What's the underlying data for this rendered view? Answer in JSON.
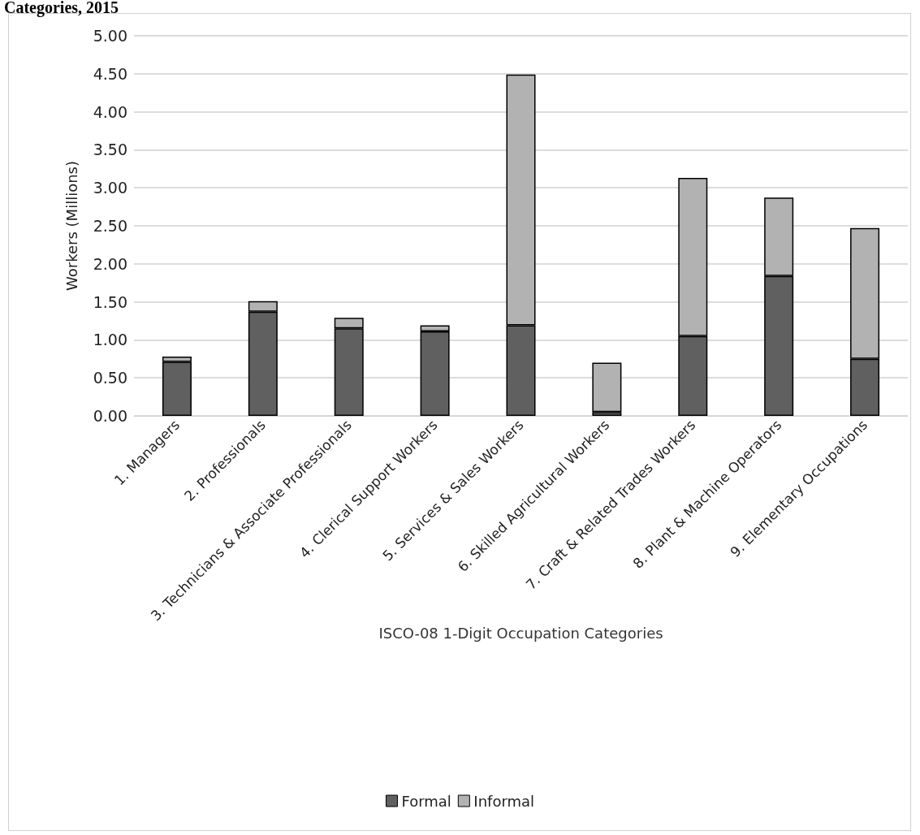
{
  "chart_data": {
    "type": "bar",
    "title": "Categories, 2015",
    "xlabel": "ISCO-08 1-Digit Occupation Categories",
    "ylabel": "Workers (Millions)",
    "categories": [
      "1. Managers",
      "2. Professionals",
      "3. Technicians & Associate Professionals",
      "4. Clerical Support Workers",
      "5. Services & Sales Workers",
      "6. Skilled Agricultural Workers",
      "7. Craft & Related Trades Workers",
      "8. Plant & Machine Operators",
      "9. Elementary Occupations"
    ],
    "series": [
      {
        "name": "Formal",
        "color": "#606060",
        "values": [
          0.71,
          1.37,
          1.15,
          1.11,
          1.19,
          0.05,
          1.05,
          1.84,
          0.75
        ]
      },
      {
        "name": "Informal",
        "color": "#b2b2b2",
        "values": [
          0.07,
          0.14,
          0.14,
          0.08,
          3.3,
          0.65,
          2.08,
          1.03,
          1.72
        ]
      }
    ],
    "stacked": true,
    "ylim": [
      0,
      5
    ],
    "yticks": [
      {
        "value": 0,
        "label": "0.00"
      },
      {
        "value": 0.5,
        "label": "0.50"
      },
      {
        "value": 1,
        "label": "1.00"
      },
      {
        "value": 1.5,
        "label": "1.50"
      },
      {
        "value": 2,
        "label": "2.00"
      },
      {
        "value": 2.5,
        "label": "2.50"
      },
      {
        "value": 3,
        "label": "3.00"
      },
      {
        "value": 3.5,
        "label": "3.50"
      },
      {
        "value": 4,
        "label": "4.00"
      },
      {
        "value": 4.5,
        "label": "4.50"
      },
      {
        "value": 5,
        "label": "5.00"
      }
    ],
    "grid": "y",
    "legend": "bottom"
  }
}
